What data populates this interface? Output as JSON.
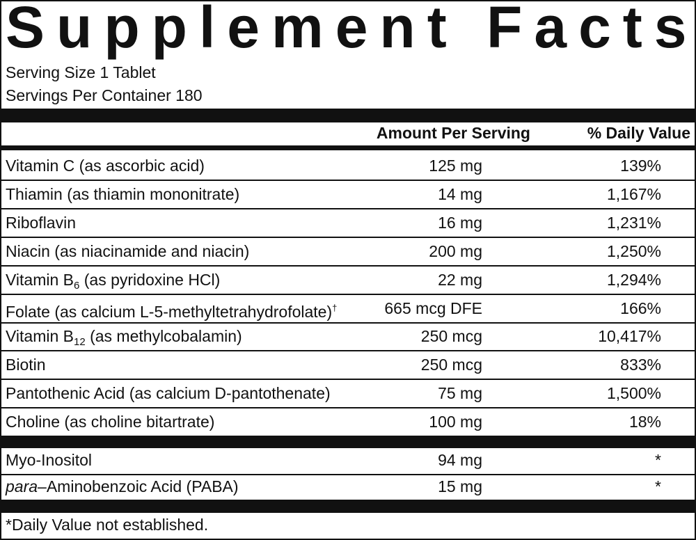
{
  "header": {
    "title": "Supplement Facts",
    "serving_size": "Serving Size 1 Tablet",
    "servings_per_container": "Servings Per Container 180"
  },
  "table": {
    "columns": [
      "Amount Per Serving",
      "% Daily Value"
    ],
    "rows": [
      {
        "name": [
          {
            "text": "Vitamin C (as ascorbic acid)"
          }
        ],
        "amount": "125 mg",
        "daily_value": "139%"
      },
      {
        "name": [
          {
            "text": "Thiamin (as thiamin mononitrate)"
          }
        ],
        "amount": "14 mg",
        "daily_value": "1,167%"
      },
      {
        "name": [
          {
            "text": "Riboflavin"
          }
        ],
        "amount": "16 mg",
        "daily_value": "1,231%"
      },
      {
        "name": [
          {
            "text": "Niacin (as niacinamide and niacin)"
          }
        ],
        "amount": "200 mg",
        "daily_value": "1,250%"
      },
      {
        "name": [
          {
            "text": "Vitamin B"
          },
          {
            "text": "6",
            "style": "sub"
          },
          {
            "text": " (as pyridoxine HCl)"
          }
        ],
        "amount": "22 mg",
        "daily_value": "1,294%"
      },
      {
        "name": [
          {
            "text": "Folate (as calcium L-5-methyltetrahydrofolate)"
          },
          {
            "text": "†",
            "style": "sup"
          }
        ],
        "amount": "665 mcg DFE",
        "daily_value": "166%"
      },
      {
        "name": [
          {
            "text": "Vitamin B"
          },
          {
            "text": "12",
            "style": "sub"
          },
          {
            "text": " (as methylcobalamin)"
          }
        ],
        "amount": "250 mcg",
        "daily_value": "10,417%"
      },
      {
        "name": [
          {
            "text": "Biotin"
          }
        ],
        "amount": "250 mcg",
        "daily_value": "833%"
      },
      {
        "name": [
          {
            "text": "Pantothenic Acid (as calcium D-pantothenate)"
          }
        ],
        "amount": "75 mg",
        "daily_value": "1,500%"
      },
      {
        "name": [
          {
            "text": "Choline (as choline bitartrate)"
          }
        ],
        "amount": "100 mg",
        "daily_value": "18%"
      }
    ],
    "other_rows": [
      {
        "name": [
          {
            "text": "Myo-Inositol"
          }
        ],
        "amount": "94 mg",
        "daily_value": "*"
      },
      {
        "name": [
          {
            "text": "para",
            "style": "italic"
          },
          {
            "text": "–Aminobenzoic Acid (PABA)"
          }
        ],
        "amount": "15 mg",
        "daily_value": "*"
      }
    ]
  },
  "footnote": "*Daily Value not established."
}
